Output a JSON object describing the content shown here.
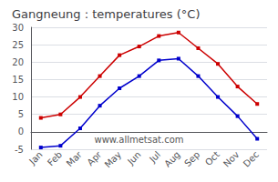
{
  "chart_data": {
    "type": "line",
    "title": "Gangneung : temperatures (°C)",
    "categories": [
      "Jan",
      "Feb",
      "Mar",
      "Apr",
      "May",
      "Jun",
      "Jul",
      "Aug",
      "Sep",
      "Oct",
      "Nov",
      "Dec"
    ],
    "series": [
      {
        "color": "#cc0000",
        "values": [
          4,
          5,
          10,
          16,
          22,
          24.5,
          27.5,
          28.5,
          24,
          19.5,
          13,
          8
        ]
      },
      {
        "color": "#0000cc",
        "values": [
          -4.5,
          -4,
          1,
          7.5,
          12.5,
          16,
          20.5,
          21,
          16,
          10,
          4.5,
          -2
        ]
      }
    ],
    "ylim": [
      -5,
      30
    ],
    "yticks": [
      -5,
      0,
      5,
      10,
      15,
      20,
      25,
      30
    ],
    "grid": true,
    "marker": "square",
    "annotation": "www.allmetsat.com"
  }
}
